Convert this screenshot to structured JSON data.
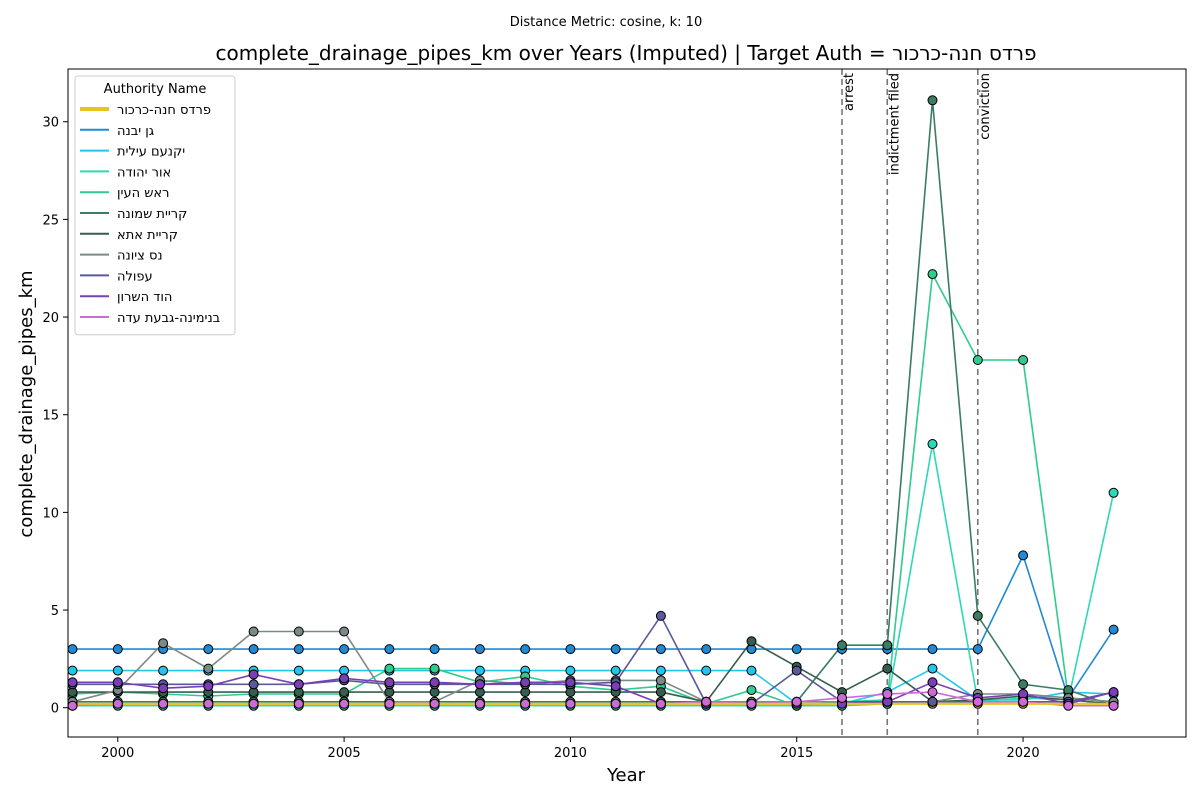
{
  "chart_data": {
    "type": "line",
    "suptitle": "Distance Metric: cosine, k: 10",
    "title": "complete_drainage_pipes_km over Years (Imputed) | Target Auth = פרדס חנה-כרכור",
    "xlabel": "Year",
    "ylabel": "complete_drainage_pipes_km",
    "xlim": [
      1998.9,
      2023.6
    ],
    "ylim": [
      -1.5,
      32.7
    ],
    "xticks": [
      2000,
      2005,
      2010,
      2015,
      2020
    ],
    "yticks": [
      0,
      5,
      10,
      15,
      20,
      25,
      30
    ],
    "grid": false,
    "x": [
      1999,
      2000,
      2001,
      2002,
      2003,
      2004,
      2005,
      2006,
      2007,
      2008,
      2009,
      2010,
      2011,
      2012,
      2013,
      2014,
      2015,
      2016,
      2017,
      2018,
      2019,
      2020,
      2021,
      2022
    ],
    "legend": {
      "title": "Authority Name",
      "placement": "top-left"
    },
    "events": [
      {
        "x": 2016,
        "label": "arrest"
      },
      {
        "x": 2017,
        "label": "indictment filed"
      },
      {
        "x": 2019,
        "label": "conviction"
      }
    ],
    "series": [
      {
        "name": "פרדס חנה-כרכור",
        "color": "#e8c51e",
        "target": true,
        "values": [
          0.2,
          0.2,
          0.2,
          0.2,
          0.2,
          0.2,
          0.2,
          0.2,
          0.2,
          0.2,
          0.2,
          0.2,
          0.2,
          0.2,
          0.2,
          0.2,
          0.2,
          0.2,
          0.2,
          0.2,
          0.2,
          0.2,
          0.2,
          0.2
        ]
      },
      {
        "name": "גן יבנה",
        "color": "#1f8ad8",
        "values": [
          3.0,
          3.0,
          3.0,
          3.0,
          3.0,
          3.0,
          3.0,
          3.0,
          3.0,
          3.0,
          3.0,
          3.0,
          3.0,
          3.0,
          3.0,
          3.0,
          3.0,
          3.0,
          3.0,
          3.0,
          3.0,
          7.8,
          0.5,
          4.0
        ]
      },
      {
        "name": "יקנעם עילית",
        "color": "#22c7e8",
        "values": [
          1.9,
          1.9,
          1.9,
          1.9,
          1.9,
          1.9,
          1.9,
          1.9,
          1.9,
          1.9,
          1.9,
          1.9,
          1.9,
          1.9,
          1.9,
          1.9,
          0.2,
          0.2,
          0.8,
          2.0,
          0.4,
          0.4,
          0.8,
          0.7
        ]
      },
      {
        "name": "אור יהודה",
        "color": "#2dd8b8",
        "values": [
          0.1,
          0.1,
          0.1,
          0.1,
          0.1,
          0.1,
          0.1,
          0.1,
          0.1,
          0.1,
          0.1,
          0.1,
          0.1,
          0.1,
          0.1,
          0.1,
          0.1,
          0.1,
          0.2,
          13.5,
          0.3,
          0.5,
          0.4,
          11.0
        ]
      },
      {
        "name": "ראש העין",
        "color": "#2ecc8e",
        "values": [
          0.7,
          0.8,
          0.7,
          0.6,
          0.7,
          0.7,
          0.7,
          2.0,
          2.0,
          1.3,
          1.6,
          1.1,
          0.9,
          1.1,
          0.2,
          0.9,
          0.1,
          0.3,
          0.4,
          22.2,
          17.8,
          17.8,
          0.5,
          0.3
        ]
      },
      {
        "name": "קריית שמונה",
        "color": "#3a7d62",
        "values": [
          0.3,
          0.3,
          0.3,
          0.3,
          0.3,
          0.3,
          0.3,
          0.3,
          0.3,
          0.3,
          0.3,
          0.3,
          0.3,
          0.3,
          0.3,
          0.3,
          0.3,
          3.2,
          3.2,
          31.1,
          4.7,
          1.2,
          0.9,
          0.1
        ]
      },
      {
        "name": "קריית אתא",
        "color": "#355e50",
        "values": [
          0.8,
          0.8,
          0.8,
          0.8,
          0.8,
          0.8,
          0.8,
          0.8,
          0.8,
          0.8,
          0.8,
          0.8,
          0.8,
          0.8,
          0.3,
          3.4,
          2.1,
          0.8,
          2.0,
          0.3,
          0.4,
          0.6,
          0.4,
          0.2
        ]
      },
      {
        "name": "נס ציונה",
        "color": "#7b8a88",
        "values": [
          0.3,
          0.9,
          3.3,
          2.0,
          3.9,
          3.9,
          3.9,
          0.3,
          0.3,
          1.4,
          1.2,
          1.4,
          1.4,
          1.4,
          0.3,
          0.3,
          0.3,
          0.3,
          0.3,
          0.3,
          0.7,
          0.7,
          0.5,
          0.3
        ]
      },
      {
        "name": "עפולה",
        "color": "#5a5a9a",
        "values": [
          1.2,
          1.2,
          1.2,
          1.2,
          1.2,
          1.2,
          1.4,
          1.2,
          1.2,
          1.2,
          1.2,
          1.2,
          1.3,
          4.7,
          0.2,
          0.2,
          1.9,
          0.3,
          0.3,
          0.3,
          0.3,
          0.3,
          0.3,
          0.8
        ]
      },
      {
        "name": "הוד השרון",
        "color": "#7a3fb8",
        "values": [
          1.3,
          1.3,
          1.0,
          1.1,
          1.7,
          1.2,
          1.5,
          1.3,
          1.3,
          1.2,
          1.3,
          1.3,
          1.1,
          0.2,
          0.2,
          0.2,
          0.2,
          0.2,
          0.3,
          1.3,
          0.5,
          0.7,
          0.2,
          0.8
        ]
      },
      {
        "name": "בנימינה-גבעת עדה",
        "color": "#cc6bd6",
        "values": [
          0.1,
          0.2,
          0.2,
          0.2,
          0.2,
          0.2,
          0.2,
          0.2,
          0.2,
          0.2,
          0.2,
          0.2,
          0.2,
          0.2,
          0.3,
          0.2,
          0.3,
          0.5,
          0.7,
          0.8,
          0.3,
          0.3,
          0.1,
          0.1
        ]
      }
    ]
  }
}
